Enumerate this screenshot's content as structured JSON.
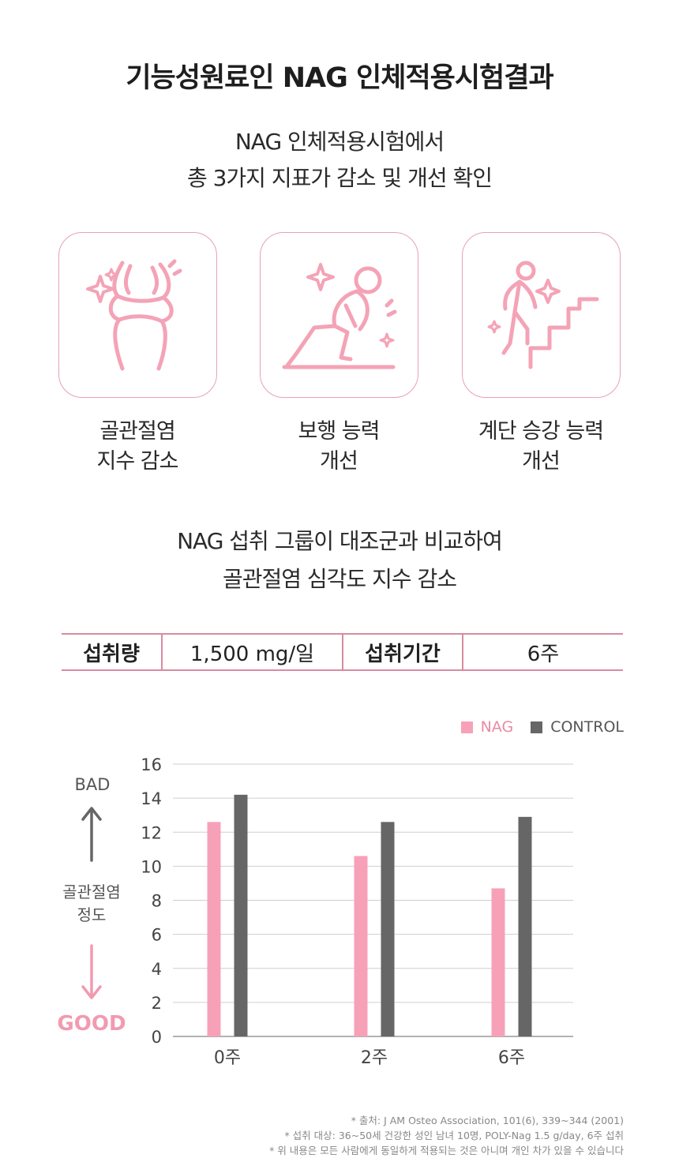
{
  "title": "기능성원료인 NAG 인체적용시험결과",
  "subtitle": {
    "line1": "NAG 인체적용시험에서",
    "line2": "총 3가지 지표가 감소 및 개선 확인"
  },
  "indicators": [
    {
      "icon": "knee-joint-icon",
      "line1": "골관절염",
      "line2": "지수 감소"
    },
    {
      "icon": "kneeling-person-icon",
      "line1": "보행 능력",
      "line2": "개선"
    },
    {
      "icon": "stairs-person-icon",
      "line1": "계단 승강 능력",
      "line2": "개선"
    }
  ],
  "comparison": {
    "line1": "NAG 섭취 그룹이 대조군과 비교하여",
    "line2": "골관절염 심각도 지수 감소"
  },
  "dose_table": {
    "intake_label": "섭취량",
    "intake_value": "1,500 mg/일",
    "period_label": "섭취기간",
    "period_value": "6주"
  },
  "side_labels": {
    "bad": "BAD",
    "middle_line1": "골관절염",
    "middle_line2": "정도",
    "good": "GOOD"
  },
  "colors": {
    "accent_pink": "#f7a1b8",
    "control_gray": "#666666",
    "border_pink": "#e7a2b4",
    "good_pink": "#f19ab0"
  },
  "chart_data": {
    "type": "bar",
    "categories": [
      "0주",
      "2주",
      "6주"
    ],
    "series": [
      {
        "name": "NAG",
        "values": [
          12.6,
          10.6,
          8.7
        ],
        "color": "#f7a1b8"
      },
      {
        "name": "CONTROL",
        "values": [
          14.2,
          12.6,
          12.9
        ],
        "color": "#666666"
      }
    ],
    "ylim": [
      0,
      16
    ],
    "yticks": [
      0,
      2,
      4,
      6,
      8,
      10,
      12,
      14,
      16
    ],
    "grid": true,
    "legend_position": "top-right"
  },
  "footnotes": [
    "* 출처: J AM Osteo Association,  101(6), 339~344 (2001)",
    "* 섭취 대상: 36~50세 건강한 성인 남녀 10명, POLY-Nag 1.5 g/day, 6주 섭취",
    "* 위 내용은 모든 사람에게 동일하게 적용되는 것은 아니며 개인 차가 있을 수 있습니다"
  ]
}
